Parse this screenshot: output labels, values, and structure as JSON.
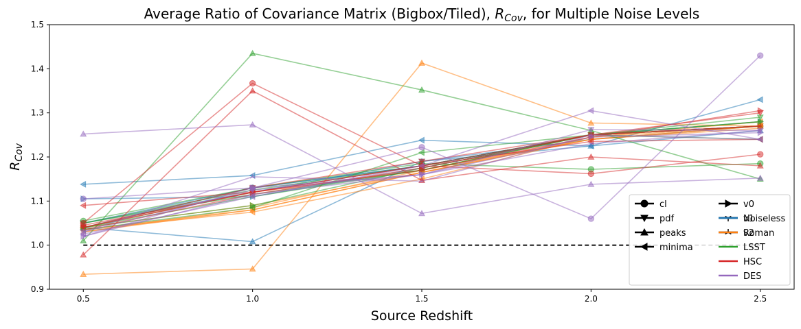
{
  "chart_data": {
    "type": "line",
    "title_main": "Average Ratio of Covariance Matrix (Bigbox/Tiled), ",
    "title_symbol": "R",
    "title_sub": "Cov",
    "title_tail": ", for Multiple Noise Levels",
    "xlabel": "Source Redshift",
    "ylabel_symbol": "R",
    "ylabel_sub": "Cov",
    "x": [
      0.5,
      1.0,
      1.5,
      2.0,
      2.5
    ],
    "x_tick_labels": [
      "0.5",
      "1.0",
      "1.5",
      "2.0",
      "2.5"
    ],
    "y_ticks": [
      0.9,
      1.0,
      1.1,
      1.2,
      1.3,
      1.4,
      1.5
    ],
    "y_tick_labels": [
      "0.9",
      "1.0",
      "1.1",
      "1.2",
      "1.3",
      "1.4",
      "1.5"
    ],
    "xlim": [
      0.4,
      2.6
    ],
    "ylim": [
      0.9,
      1.5
    ],
    "reference_line": 1.0,
    "grid": false,
    "legend_position": "lower-right",
    "legend_markers": [
      {
        "label": "cl",
        "marker": "circle"
      },
      {
        "label": "pdf",
        "marker": "triangle-down"
      },
      {
        "label": "peaks",
        "marker": "triangle-up"
      },
      {
        "label": "minima",
        "marker": "triangle-left"
      },
      {
        "label": "v0",
        "marker": "triangle-right"
      },
      {
        "label": "v1",
        "marker": "tri-down"
      },
      {
        "label": "v2",
        "marker": "tri-up"
      }
    ],
    "legend_colors": [
      {
        "label": "Noiseless",
        "color": "#1f77b4"
      },
      {
        "label": "Roman",
        "color": "#ff7f0e"
      },
      {
        "label": "LSST",
        "color": "#2ca02c"
      },
      {
        "label": "HSC",
        "color": "#d62728"
      },
      {
        "label": "DES",
        "color": "#9467bd"
      }
    ],
    "series": [
      {
        "noise": "Noiseless",
        "stat": "cl",
        "values": [
          1.04,
          1.13,
          1.18,
          1.25,
          1.27
        ]
      },
      {
        "noise": "Noiseless",
        "stat": "pdf",
        "values": [
          1.05,
          1.12,
          1.19,
          1.24,
          1.27
        ]
      },
      {
        "noise": "Noiseless",
        "stat": "peaks",
        "values": [
          1.04,
          1.008,
          1.19,
          1.225,
          1.26
        ]
      },
      {
        "noise": "Noiseless",
        "stat": "minima",
        "values": [
          1.138,
          1.158,
          1.238,
          1.225,
          1.33
        ]
      },
      {
        "noise": "Noiseless",
        "stat": "v0",
        "values": [
          1.105,
          1.11,
          1.175,
          1.25,
          1.28
        ]
      },
      {
        "noise": "Noiseless",
        "stat": "v1",
        "values": [
          1.04,
          1.12,
          1.18,
          1.25,
          1.27
        ]
      },
      {
        "noise": "Noiseless",
        "stat": "v2",
        "values": [
          1.05,
          1.13,
          1.18,
          1.25,
          1.27
        ]
      },
      {
        "noise": "Roman",
        "stat": "cl",
        "values": [
          1.04,
          1.12,
          1.17,
          1.25,
          1.27
        ]
      },
      {
        "noise": "Roman",
        "stat": "pdf",
        "values": [
          1.035,
          1.08,
          1.165,
          1.24,
          1.27
        ]
      },
      {
        "noise": "Roman",
        "stat": "peaks",
        "values": [
          0.934,
          0.946,
          1.413,
          1.277,
          1.27
        ]
      },
      {
        "noise": "Roman",
        "stat": "minima",
        "values": [
          1.035,
          1.075,
          1.15,
          1.245,
          1.28
        ]
      },
      {
        "noise": "Roman",
        "stat": "v0",
        "values": [
          1.04,
          1.09,
          1.165,
          1.245,
          1.27
        ]
      },
      {
        "noise": "Roman",
        "stat": "v1",
        "values": [
          1.03,
          1.085,
          1.17,
          1.24,
          1.265
        ]
      },
      {
        "noise": "Roman",
        "stat": "v2",
        "values": [
          1.03,
          1.08,
          1.165,
          1.24,
          1.27
        ]
      },
      {
        "noise": "LSST",
        "stat": "cl",
        "values": [
          1.055,
          1.13,
          1.185,
          1.172,
          1.185
        ]
      },
      {
        "noise": "LSST",
        "stat": "pdf",
        "values": [
          1.05,
          1.125,
          1.18,
          1.25,
          1.29
        ]
      },
      {
        "noise": "LSST",
        "stat": "peaks",
        "values": [
          1.01,
          1.435,
          1.352,
          1.26,
          1.15
        ]
      },
      {
        "noise": "LSST",
        "stat": "minima",
        "values": [
          1.035,
          1.085,
          1.21,
          1.25,
          1.24
        ]
      },
      {
        "noise": "LSST",
        "stat": "v0",
        "values": [
          1.04,
          1.09,
          1.175,
          1.25,
          1.28
        ]
      },
      {
        "noise": "LSST",
        "stat": "v1",
        "values": [
          1.05,
          1.115,
          1.17,
          1.25,
          1.28
        ]
      },
      {
        "noise": "LSST",
        "stat": "v2",
        "values": [
          1.04,
          1.11,
          1.17,
          1.25,
          1.27
        ]
      },
      {
        "noise": "HSC",
        "stat": "cl",
        "values": [
          1.05,
          1.367,
          1.18,
          1.162,
          1.206
        ]
      },
      {
        "noise": "HSC",
        "stat": "pdf",
        "values": [
          1.04,
          1.13,
          1.19,
          1.25,
          1.3
        ]
      },
      {
        "noise": "HSC",
        "stat": "peaks",
        "values": [
          0.978,
          1.35,
          1.147,
          1.2,
          1.18
        ]
      },
      {
        "noise": "HSC",
        "stat": "minima",
        "values": [
          1.09,
          1.12,
          1.18,
          1.235,
          1.24
        ]
      },
      {
        "noise": "HSC",
        "stat": "v0",
        "values": [
          1.045,
          1.12,
          1.17,
          1.245,
          1.305
        ]
      },
      {
        "noise": "HSC",
        "stat": "v1",
        "values": [
          1.04,
          1.12,
          1.18,
          1.25,
          1.27
        ]
      },
      {
        "noise": "HSC",
        "stat": "v2",
        "values": [
          1.035,
          1.115,
          1.175,
          1.25,
          1.27
        ]
      },
      {
        "noise": "DES",
        "stat": "cl",
        "values": [
          1.105,
          1.13,
          1.222,
          1.06,
          1.43
        ]
      },
      {
        "noise": "DES",
        "stat": "pdf",
        "values": [
          1.03,
          1.125,
          1.16,
          1.262,
          1.26
        ]
      },
      {
        "noise": "DES",
        "stat": "peaks",
        "values": [
          1.252,
          1.273,
          1.072,
          1.138,
          1.152
        ]
      },
      {
        "noise": "DES",
        "stat": "minima",
        "values": [
          1.025,
          1.11,
          1.18,
          1.305,
          1.24
        ]
      },
      {
        "noise": "DES",
        "stat": "v0",
        "values": [
          1.02,
          1.13,
          1.16,
          1.245,
          1.255
        ]
      },
      {
        "noise": "DES",
        "stat": "v1",
        "values": [
          1.02,
          1.115,
          1.16,
          1.23,
          1.26
        ]
      },
      {
        "noise": "DES",
        "stat": "v2",
        "values": [
          1.03,
          1.155,
          1.145,
          1.25,
          1.24
        ]
      }
    ]
  }
}
